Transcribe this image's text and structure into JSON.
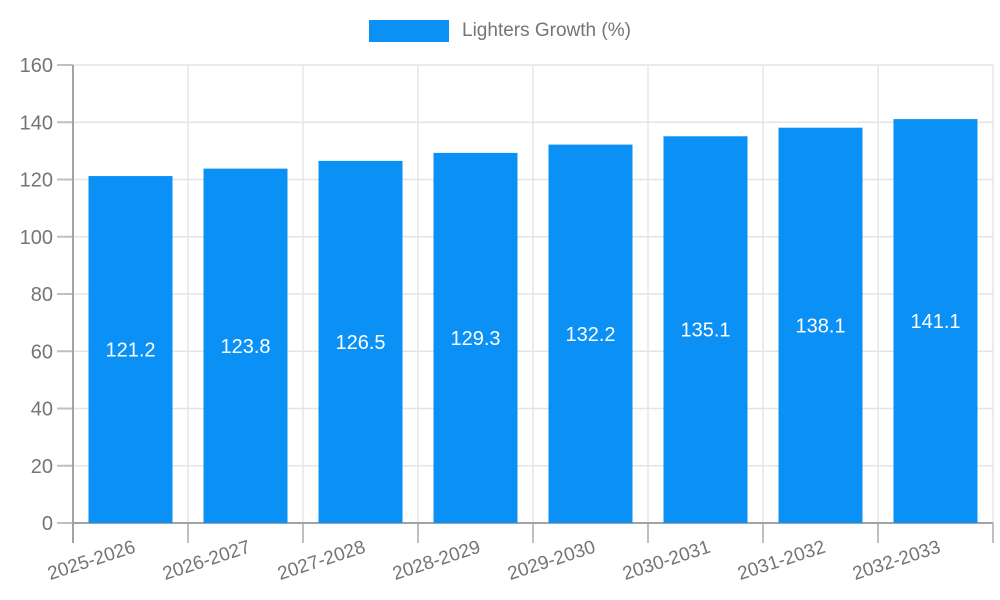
{
  "legend": {
    "label": "Lighters Growth (%)",
    "position": "top-center"
  },
  "chart_data": {
    "type": "bar",
    "title": "",
    "categories": [
      "2025-2026",
      "2026-2027",
      "2027-2028",
      "2028-2029",
      "2029-2030",
      "2030-2031",
      "2031-2032",
      "2032-2033"
    ],
    "series": [
      {
        "name": "Lighters Growth (%)",
        "values": [
          121.2,
          123.8,
          126.5,
          129.3,
          132.2,
          135.1,
          138.1,
          141.1
        ]
      }
    ],
    "value_labels": [
      "121.2",
      "123.8",
      "126.5",
      "129.3",
      "132.2",
      "135.1",
      "138.1",
      "141.1"
    ],
    "xlabel": "",
    "ylabel": "",
    "ylim": [
      0,
      160
    ],
    "yticks": [
      0,
      20,
      40,
      60,
      80,
      100,
      120,
      140,
      160
    ],
    "grid": "on",
    "legend_position": "top-center",
    "x_tick_label_rotation_deg": -18,
    "value_label_position": "inside-center"
  },
  "colors": {
    "bar": "#0b90f5",
    "grid_line": "#e4e4e4",
    "axis_line": "#a3a3a3",
    "tick_mark": "#bfbfbf",
    "axis_text": "#757575",
    "value_label_text": "#ffffff",
    "background": "#ffffff"
  }
}
